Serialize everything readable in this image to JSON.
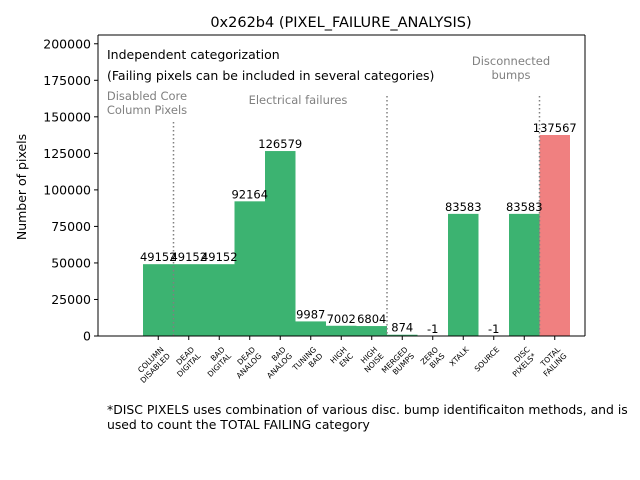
{
  "chart_data": {
    "type": "bar",
    "title": "0x262b4 (PIXEL_FAILURE_ANALYSIS)",
    "xlabel": "",
    "ylabel": "Number of pixels",
    "ylim": [
      0,
      206000
    ],
    "yticks": [
      0,
      25000,
      50000,
      75000,
      100000,
      125000,
      150000,
      175000,
      200000
    ],
    "grid": false,
    "categories": [
      "COLUMN\nDISABLED",
      "DEAD\nDIGITAL",
      "BAD\nDIGITAL",
      "DEAD\nANALOG",
      "BAD\nANALOG",
      "TUNING\nBAD",
      "HIGH\nENC",
      "HIGH\nNOISE",
      "MERGED\nBUMPS",
      "ZERO\nBIAS",
      "XTALK",
      "SOURCE",
      "DISC\nPIXELS*",
      "TOTAL\nFAILING"
    ],
    "values": [
      49152,
      49152,
      49152,
      92164,
      126579,
      9987,
      7002,
      6804,
      874,
      -1,
      83583,
      -1,
      83583,
      137567
    ],
    "bar_labels": [
      "49152",
      "49152",
      "49152",
      "92164",
      "126579",
      "9987",
      "7002",
      "6804",
      "874",
      "-1",
      "83583",
      "-1",
      "83583",
      "137567"
    ],
    "colors": {
      "normal": "#3cb371",
      "total": "#f08080",
      "divider": "#808080",
      "group_text": "#808080"
    },
    "legend_text": [
      "Independent categorization",
      "(Failing pixels can be included in several categories)"
    ],
    "group_labels": [
      {
        "text": "Disabled Core\nColumn Pixels",
        "divider_after_category": 0
      },
      {
        "text": "Electrical failures",
        "divider_after_category": 7
      },
      {
        "text": "Disconnected\nbumps",
        "divider_after_category": 12
      }
    ],
    "footnote": "*DISC PIXELS uses combination of various disc. bump identificaiton methods, and is\nused to count the TOTAL FAILING category"
  }
}
